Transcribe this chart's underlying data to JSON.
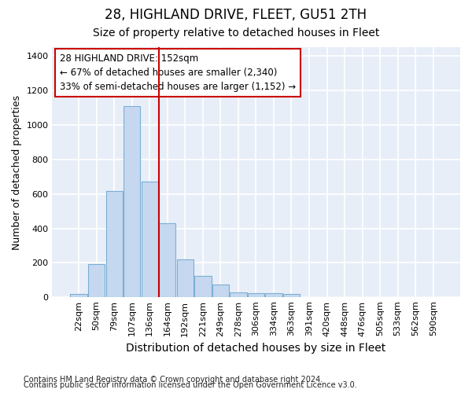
{
  "title": "28, HIGHLAND DRIVE, FLEET, GU51 2TH",
  "subtitle": "Size of property relative to detached houses in Fleet",
  "xlabel": "Distribution of detached houses by size in Fleet",
  "ylabel": "Number of detached properties",
  "categories": [
    "22sqm",
    "50sqm",
    "79sqm",
    "107sqm",
    "136sqm",
    "164sqm",
    "192sqm",
    "221sqm",
    "249sqm",
    "278sqm",
    "306sqm",
    "334sqm",
    "363sqm",
    "391sqm",
    "420sqm",
    "448sqm",
    "476sqm",
    "505sqm",
    "533sqm",
    "562sqm",
    "590sqm"
  ],
  "values": [
    18,
    195,
    615,
    1110,
    670,
    430,
    220,
    125,
    73,
    30,
    25,
    25,
    18,
    0,
    0,
    0,
    0,
    0,
    0,
    0,
    0
  ],
  "bar_color": "#c5d8f0",
  "bar_edgecolor": "#7bafd4",
  "background_color": "#e8eef8",
  "grid_color": "#ffffff",
  "vline_x_index": 4.5,
  "vline_color": "#cc0000",
  "ylim": [
    0,
    1450
  ],
  "yticks": [
    0,
    200,
    400,
    600,
    800,
    1000,
    1200,
    1400
  ],
  "annotation_title": "28 HIGHLAND DRIVE: 152sqm",
  "annotation_line1": "← 67% of detached houses are smaller (2,340)",
  "annotation_line2": "33% of semi-detached houses are larger (1,152) →",
  "annotation_box_color": "#cc0000",
  "footer_line1": "Contains HM Land Registry data © Crown copyright and database right 2024.",
  "footer_line2": "Contains public sector information licensed under the Open Government Licence v3.0.",
  "title_fontsize": 12,
  "subtitle_fontsize": 10,
  "xlabel_fontsize": 10,
  "ylabel_fontsize": 9,
  "tick_fontsize": 8,
  "annotation_fontsize": 8.5,
  "footer_fontsize": 7
}
